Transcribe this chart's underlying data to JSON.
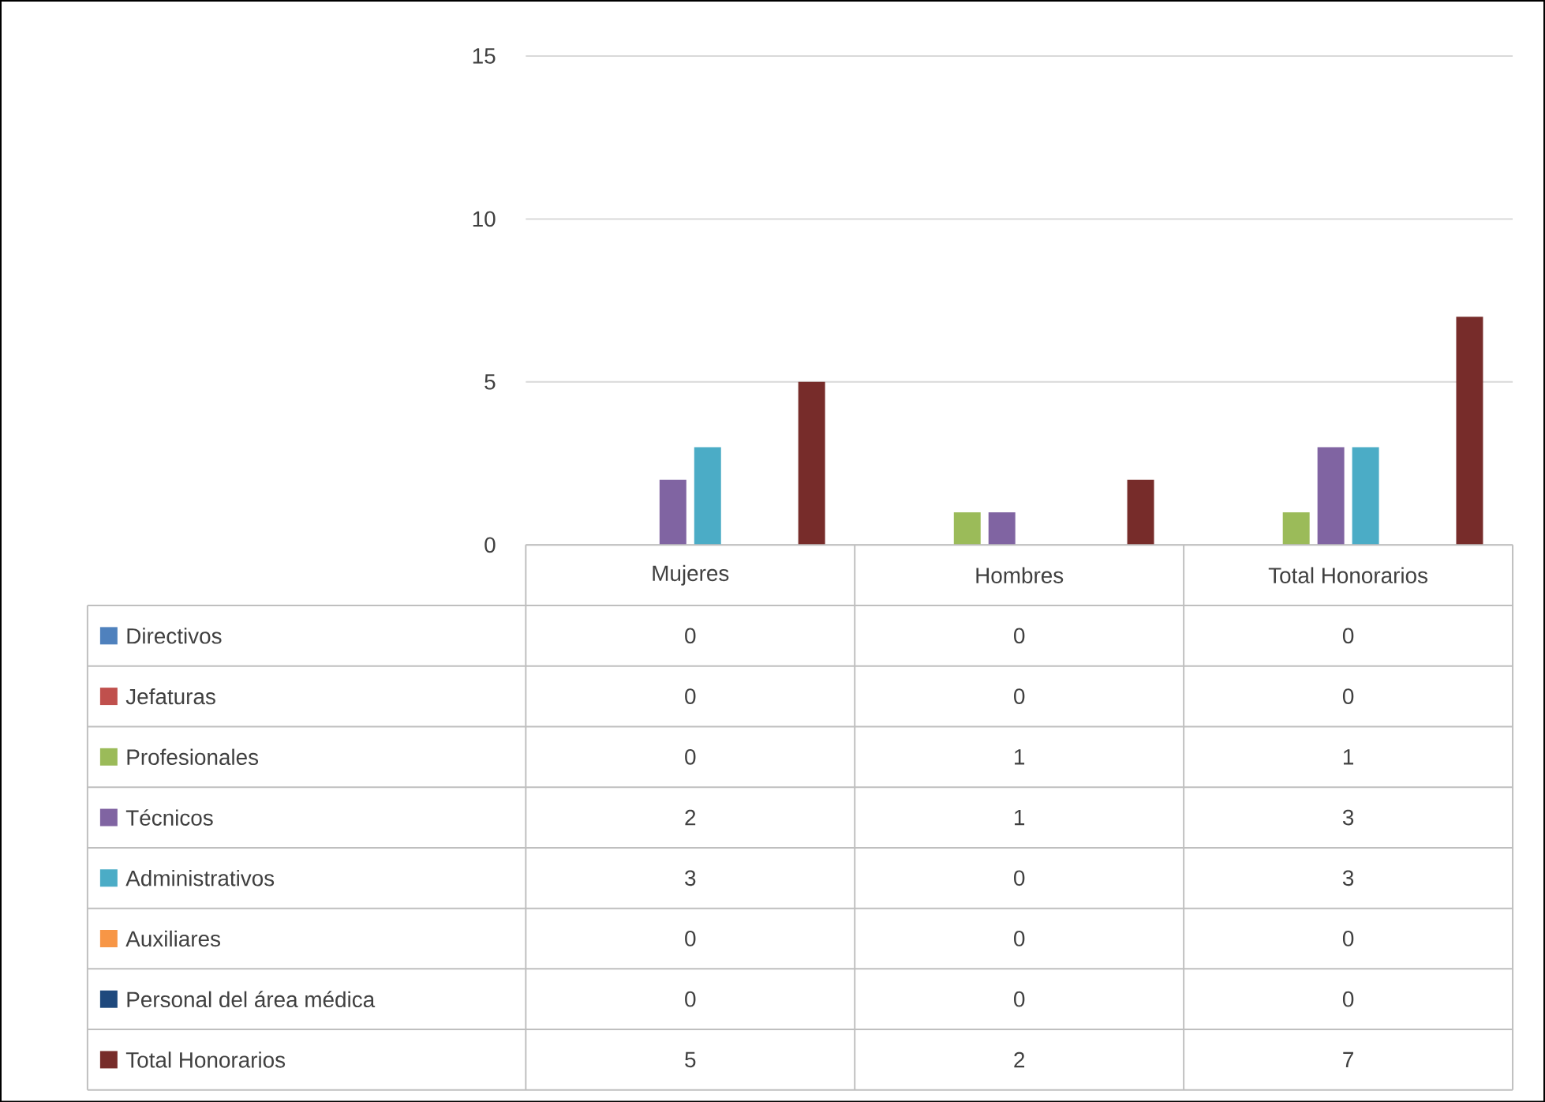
{
  "chart_data": {
    "type": "bar",
    "categories": [
      "Mujeres",
      "Hombres",
      "Total Honorarios"
    ],
    "series": [
      {
        "name": "Directivos",
        "color": "#4f81bd",
        "values": [
          0,
          0,
          0
        ]
      },
      {
        "name": "Jefaturas",
        "color": "#c0504d",
        "values": [
          0,
          0,
          0
        ]
      },
      {
        "name": "Profesionales",
        "color": "#9bbb59",
        "values": [
          0,
          1,
          1
        ]
      },
      {
        "name": "Técnicos",
        "color": "#8064a2",
        "values": [
          2,
          1,
          3
        ]
      },
      {
        "name": "Administrativos",
        "color": "#4bacc6",
        "values": [
          3,
          0,
          3
        ]
      },
      {
        "name": "Auxiliares",
        "color": "#f79646",
        "values": [
          0,
          0,
          0
        ]
      },
      {
        "name": "Personal del área médica",
        "color": "#1f497d",
        "values": [
          0,
          0,
          0
        ]
      },
      {
        "name": "Total Honorarios",
        "color": "#772c2a",
        "values": [
          5,
          2,
          7
        ]
      }
    ],
    "ylim": [
      0,
      15
    ],
    "yticks": [
      0,
      5,
      10,
      15
    ],
    "grid": "y",
    "legend": "bottom",
    "data_labels": true
  }
}
